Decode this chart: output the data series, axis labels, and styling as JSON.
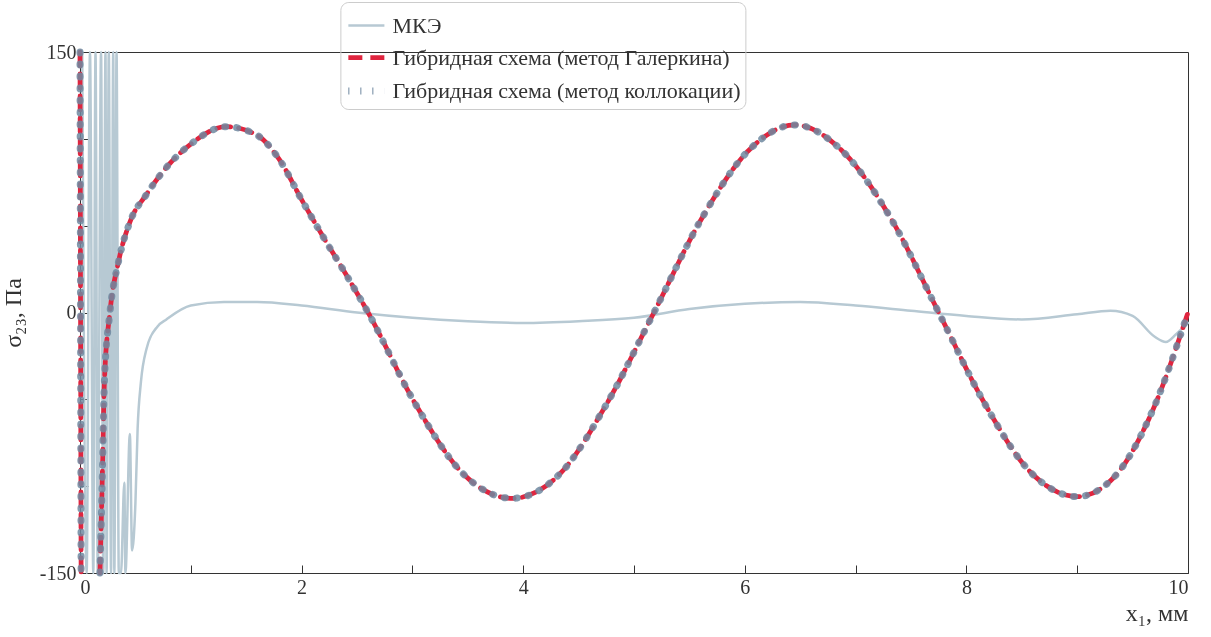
{
  "chart_data": {
    "type": "line",
    "xlabel": "x₁, мм",
    "ylabel": "σ₂₃, Па",
    "legend": "top",
    "xlim": [
      0,
      10
    ],
    "xticks": [
      0,
      {
        "value": 1,
        "label": null
      },
      2,
      {
        "value": 3,
        "label": null
      },
      4,
      {
        "value": 5,
        "label": null
      },
      6,
      {
        "value": 7,
        "label": null
      },
      8,
      {
        "value": 9,
        "label": null
      },
      10
    ],
    "ylim": [
      -150,
      150
    ],
    "yticks": [
      -150,
      {
        "value": -100,
        "label": null
      },
      {
        "value": -50,
        "label": null
      },
      0,
      {
        "value": 50,
        "label": null
      },
      {
        "value": 100,
        "label": null
      },
      150
    ],
    "series": [
      {
        "name": "МКЭ",
        "color": "#b7c9d3",
        "line_style": "solid",
        "x": [
          0.02,
          0.06,
          0.09,
          0.12,
          0.14,
          0.16,
          0.19,
          0.21,
          0.23,
          0.24,
          0.26,
          0.28,
          0.3,
          0.31,
          0.33,
          0.35,
          0.37,
          0.4,
          0.41,
          0.45,
          0.47,
          0.5,
          0.52,
          0.55,
          0.6,
          0.7,
          0.78,
          1.0,
          1.3,
          1.6,
          2.0,
          2.5,
          3.0,
          3.5,
          4.0,
          4.5,
          5.0,
          5.5,
          6.0,
          6.5,
          7.0,
          7.5,
          8.0,
          8.5,
          9.0,
          9.3,
          9.5,
          9.7,
          9.8,
          9.9,
          10
        ],
        "values": [
          150,
          -150,
          150,
          -150,
          150,
          -150,
          150,
          -150,
          150,
          -150,
          150,
          -150,
          150,
          -150,
          150,
          -150,
          -150,
          -98,
          -150,
          -70,
          -137,
          -110,
          -67,
          -40,
          -21,
          -8,
          -4,
          4,
          6,
          6,
          4,
          0,
          -3,
          -5,
          -6,
          -5,
          -3,
          2,
          5,
          6,
          4,
          1,
          -2,
          -4,
          -1,
          1,
          -2,
          -14,
          -17,
          -12,
          -6
        ]
      },
      {
        "name": "Гибридная схема (метод Галеркина)",
        "color": "#e0253f",
        "line_style": "dashed",
        "x": [
          0,
          0.01,
          0.1,
          0.18,
          0.2,
          0.22,
          0.27,
          0.35,
          0.45,
          0.6,
          0.8,
          1.0,
          1.32,
          1.6,
          1.8,
          2.0,
          2.2,
          2.4,
          2.6,
          3.03,
          3.46,
          3.9,
          4.33,
          4.75,
          5.18,
          5.61,
          6.03,
          6.45,
          6.88,
          7.32,
          7.75,
          8.17,
          8.58,
          9.0,
          9.33,
          9.67,
          10
        ],
        "values": [
          150,
          -150,
          null,
          -150,
          -98,
          -40,
          0,
          30,
          52,
          68,
          85,
          97,
          107,
          102,
          88,
          65,
          43,
          22,
          0,
          -53,
          -93,
          -107,
          -93,
          -53,
          0,
          54,
          93,
          108,
          93,
          54,
          0,
          -53,
          -92,
          -106,
          -95,
          -58,
          0
        ]
      },
      {
        "name": "Гибридная схема (метод коллокации)",
        "color": "#6f88a0",
        "line_style": "dotted",
        "x": [
          0,
          0.01,
          0.1,
          0.18,
          0.2,
          0.22,
          0.27,
          0.35,
          0.45,
          0.6,
          0.8,
          1.0,
          1.32,
          1.6,
          1.8,
          2.0,
          2.2,
          2.4,
          2.6,
          3.03,
          3.46,
          3.9,
          4.33,
          4.75,
          5.18,
          5.61,
          6.03,
          6.45,
          6.88,
          7.32,
          7.75,
          8.17,
          8.58,
          9.0,
          9.33,
          9.67,
          10
        ],
        "values": [
          150,
          -150,
          null,
          -150,
          -98,
          -40,
          0,
          30,
          52,
          68,
          85,
          97,
          107,
          102,
          88,
          65,
          43,
          22,
          0,
          -53,
          -93,
          -107,
          -93,
          -53,
          0,
          54,
          93,
          108,
          93,
          54,
          0,
          -53,
          -92,
          -106,
          -95,
          -58,
          0
        ]
      }
    ]
  }
}
